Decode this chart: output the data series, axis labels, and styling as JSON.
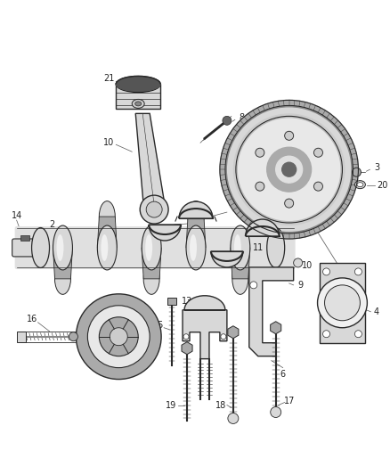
{
  "background_color": "#ffffff",
  "line_color": "#2a2a2a",
  "fill_light": "#d8d8d8",
  "fill_mid": "#aaaaaa",
  "fill_dark": "#666666",
  "label_fontsize": 7,
  "figsize": [
    4.38,
    5.33
  ],
  "dpi": 100
}
